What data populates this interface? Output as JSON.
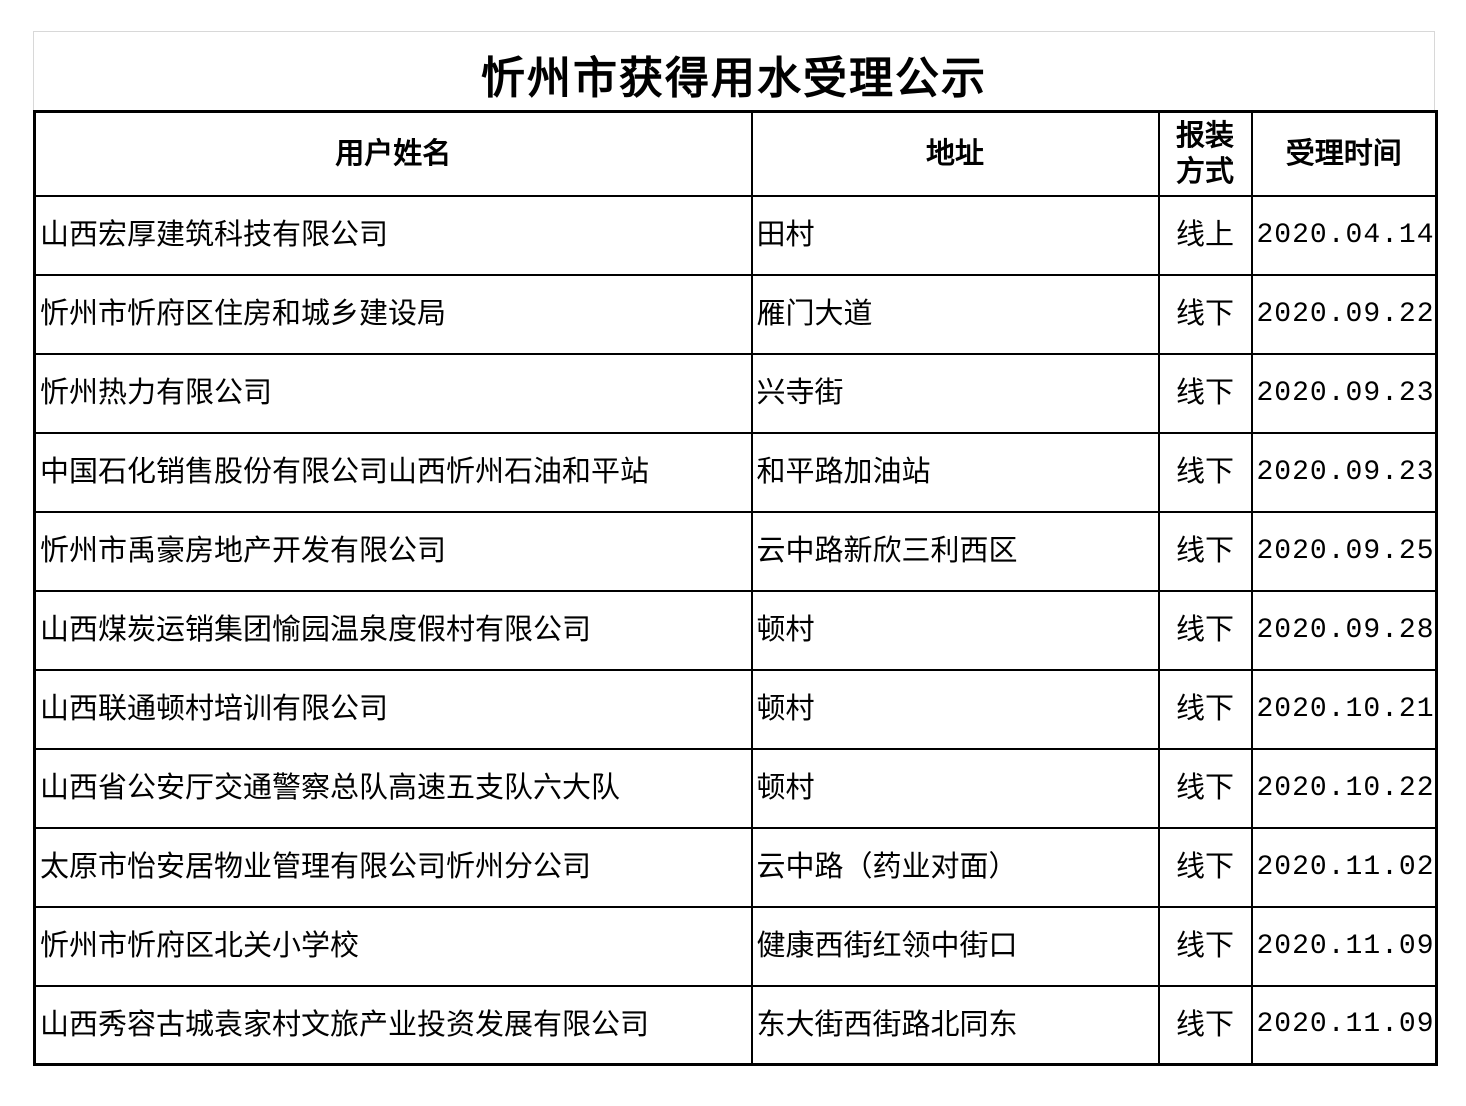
{
  "notice": {
    "title": "忻州市获得用水受理公示",
    "columns": {
      "name": "用户姓名",
      "address": "地址",
      "method": "报装\n方式",
      "date": "受理时间"
    },
    "rows": [
      {
        "name": "山西宏厚建筑科技有限公司",
        "address": "田村",
        "method": "线上",
        "date": "2020.04.14"
      },
      {
        "name": "忻州市忻府区住房和城乡建设局",
        "address": "雁门大道",
        "method": "线下",
        "date": "2020.09.22"
      },
      {
        "name": "忻州热力有限公司",
        "address": "兴寺街",
        "method": "线下",
        "date": "2020.09.23"
      },
      {
        "name": "中国石化销售股份有限公司山西忻州石油和平站",
        "address": "和平路加油站",
        "method": "线下",
        "date": "2020.09.23"
      },
      {
        "name": "忻州市禹豪房地产开发有限公司",
        "address": "云中路新欣三利西区",
        "method": "线下",
        "date": "2020.09.25"
      },
      {
        "name": "山西煤炭运销集团愉园温泉度假村有限公司",
        "address": "顿村",
        "method": "线下",
        "date": "2020.09.28"
      },
      {
        "name": "山西联通顿村培训有限公司",
        "address": "顿村",
        "method": "线下",
        "date": "2020.10.21"
      },
      {
        "name": "山西省公安厅交通警察总队高速五支队六大队",
        "address": "顿村",
        "method": "线下",
        "date": "2020.10.22"
      },
      {
        "name": "太原市怡安居物业管理有限公司忻州分公司",
        "address": "云中路（药业对面）",
        "method": "线下",
        "date": "2020.11.02"
      },
      {
        "name": "忻州市忻府区北关小学校",
        "address": "健康西街红领中街口",
        "method": "线下",
        "date": "2020.11.09"
      },
      {
        "name": "山西秀容古城袁家村文旅产业投资发展有限公司",
        "address": "东大街西街路北同东",
        "method": "线下",
        "date": "2020.11.09"
      }
    ],
    "colors": {
      "text": "#000000",
      "table_border": "#000000",
      "title_border": "#d8d8d8",
      "background": "#ffffff"
    }
  }
}
